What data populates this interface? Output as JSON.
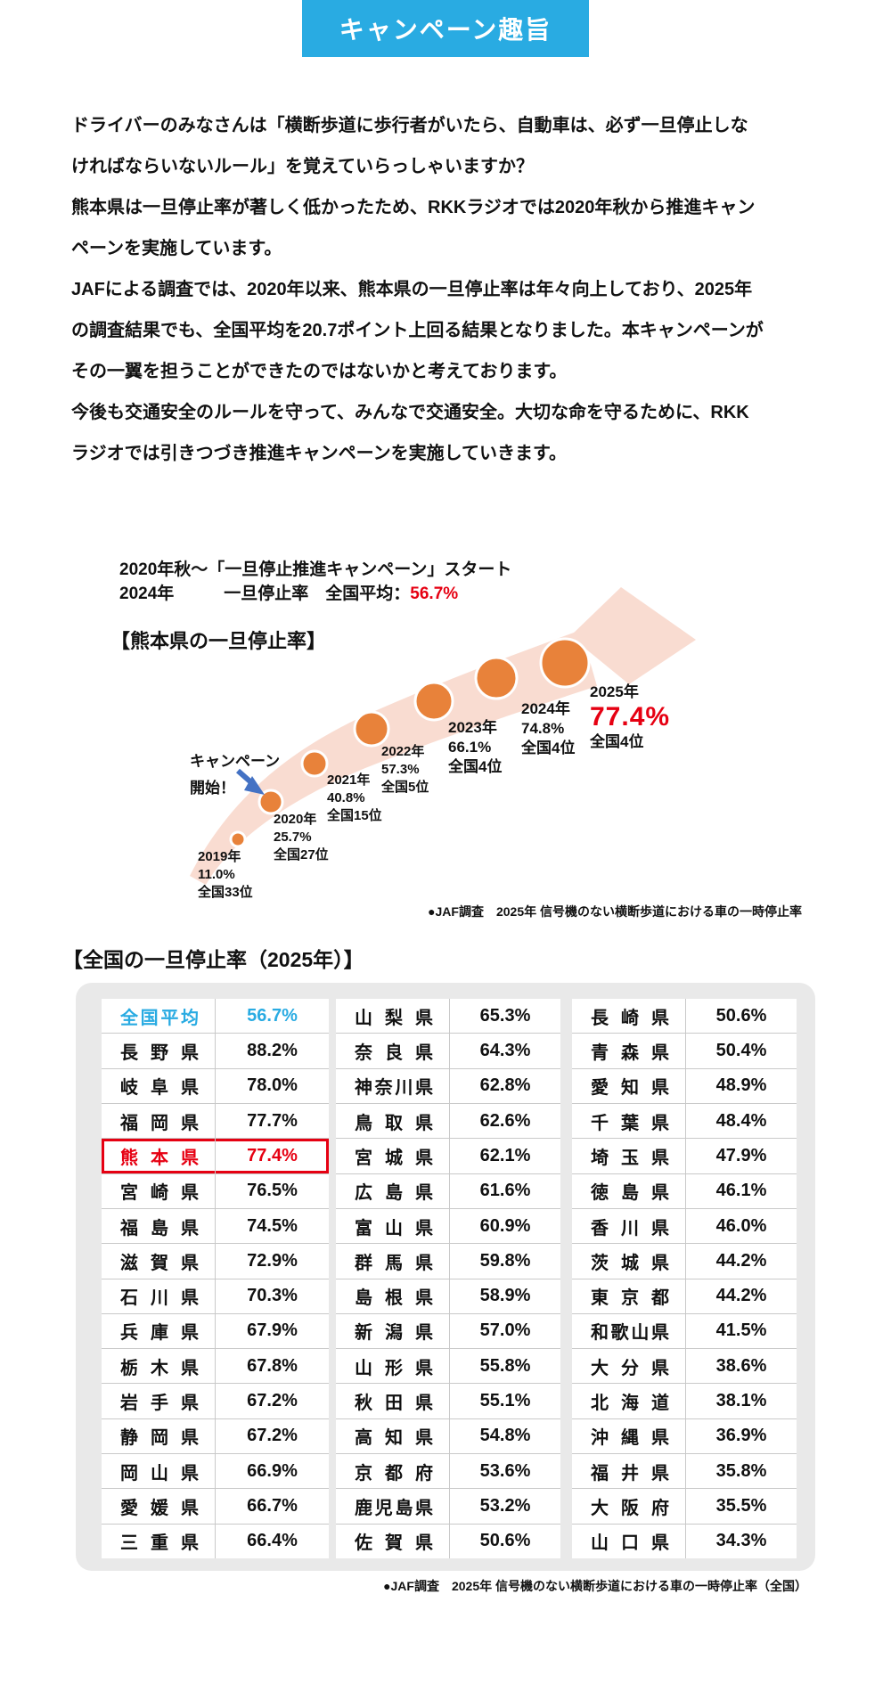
{
  "badge": "キャンペーン趣旨",
  "intro": {
    "paragraphs": [
      "ドライバーのみなさんは「横断歩道に歩行者がいたら、自動車は、必ず一旦停止しなければならいないルール」を覚えていらっしゃいますか？",
      "熊本県は一旦停止率が著しく低かったため、RKKラジオでは2020年秋から推進キャンペーンを実施しています。",
      "JAFによる調査では、2020年以来、熊本県の一旦停止率は年々向上しており、2025年の調査結果でも、全国平均を20.7ポイント上回る結果となりました。本キャンペーンがその一翼を担うことができたのではないかと考えております。",
      "今後も交通安全のルールを守って、みんなで交通安全。大切な命を守るために、RKKラジオでは引きつづき推進キャンペーンを実施していきます。"
    ]
  },
  "chart": {
    "note_line1": "2020年秋～「一旦停止推進キャンペーン」スタート",
    "note_line2_year": "2024年",
    "note_line2_label": "一旦停止率　全国平均：",
    "note_line2_value": "56.7%",
    "heading": "【熊本県の一旦停止率】",
    "campaign_start_line1": "キャンペーン",
    "campaign_start_line2": "開始！",
    "milestones": [
      {
        "year": "2019年",
        "rate": "11.0%",
        "rank": "全国33位"
      },
      {
        "year": "2020年",
        "rate": "25.7%",
        "rank": "全国27位"
      },
      {
        "year": "2021年",
        "rate": "40.8%",
        "rank": "全国15位"
      },
      {
        "year": "2022年",
        "rate": "57.3%",
        "rank": "全国5位"
      },
      {
        "year": "2023年",
        "rate": "66.1%",
        "rank": "全国4位"
      },
      {
        "year": "2024年",
        "rate": "74.8%",
        "rank": "全国4位"
      },
      {
        "year": "2025年",
        "rate": "77.4%",
        "rank": "全国4位"
      }
    ],
    "source": "●JAF調査　2025年 信号機のない横断歩道における車の一時停止率"
  },
  "chart_data": {
    "type": "bubble",
    "title": "【熊本県の一旦停止率】",
    "x": [
      "2019",
      "2020",
      "2021",
      "2022",
      "2023",
      "2024",
      "2025"
    ],
    "values": [
      11.0,
      25.7,
      40.8,
      57.3,
      66.1,
      74.8,
      77.4
    ],
    "ranks": [
      "全国33位",
      "全国27位",
      "全国15位",
      "全国5位",
      "全国4位",
      "全国4位",
      "全国4位"
    ],
    "unit": "%",
    "annotations": [
      "2020年秋～「一旦停止推進キャンペーン」スタート",
      "2024年 一旦停止率 全国平均：56.7%",
      "キャンペーン開始！"
    ],
    "source": "●JAF調査　2025年 信号機のない横断歩道における車の一時停止率"
  },
  "table": {
    "title": "【全国の一旦停止率（2025年）】",
    "columns": [
      [
        {
          "name": "全国平均",
          "value": "56.7%",
          "flag": "average"
        },
        {
          "name": "長野県",
          "value": "88.2%"
        },
        {
          "name": "岐阜県",
          "value": "78.0%"
        },
        {
          "name": "福岡県",
          "value": "77.7%"
        },
        {
          "name": "熊本県",
          "value": "77.4%",
          "flag": "highlight"
        },
        {
          "name": "宮崎県",
          "value": "76.5%"
        },
        {
          "name": "福島県",
          "value": "74.5%"
        },
        {
          "name": "滋賀県",
          "value": "72.9%"
        },
        {
          "name": "石川県",
          "value": "70.3%"
        },
        {
          "name": "兵庫県",
          "value": "67.9%"
        },
        {
          "name": "栃木県",
          "value": "67.8%"
        },
        {
          "name": "岩手県",
          "value": "67.2%"
        },
        {
          "name": "静岡県",
          "value": "67.2%"
        },
        {
          "name": "岡山県",
          "value": "66.9%"
        },
        {
          "name": "愛媛県",
          "value": "66.7%"
        },
        {
          "name": "三重県",
          "value": "66.4%"
        }
      ],
      [
        {
          "name": "山梨県",
          "value": "65.3%"
        },
        {
          "name": "奈良県",
          "value": "64.3%"
        },
        {
          "name": "神奈川県",
          "value": "62.8%"
        },
        {
          "name": "鳥取県",
          "value": "62.6%"
        },
        {
          "name": "宮城県",
          "value": "62.1%"
        },
        {
          "name": "広島県",
          "value": "61.6%"
        },
        {
          "name": "富山県",
          "value": "60.9%"
        },
        {
          "name": "群馬県",
          "value": "59.8%"
        },
        {
          "name": "島根県",
          "value": "58.9%"
        },
        {
          "name": "新潟県",
          "value": "57.0%"
        },
        {
          "name": "山形県",
          "value": "55.8%"
        },
        {
          "name": "秋田県",
          "value": "55.1%"
        },
        {
          "name": "高知県",
          "value": "54.8%"
        },
        {
          "name": "京都府",
          "value": "53.6%"
        },
        {
          "name": "鹿児島県",
          "value": "53.2%"
        },
        {
          "name": "佐賀県",
          "value": "50.6%"
        }
      ],
      [
        {
          "name": "長崎県",
          "value": "50.6%"
        },
        {
          "name": "青森県",
          "value": "50.4%"
        },
        {
          "name": "愛知県",
          "value": "48.9%"
        },
        {
          "name": "千葉県",
          "value": "48.4%"
        },
        {
          "name": "埼玉県",
          "value": "47.9%"
        },
        {
          "name": "徳島県",
          "value": "46.1%"
        },
        {
          "name": "香川県",
          "value": "46.0%"
        },
        {
          "name": "茨城県",
          "value": "44.2%"
        },
        {
          "name": "東京都",
          "value": "44.2%"
        },
        {
          "name": "和歌山県",
          "value": "41.5%"
        },
        {
          "name": "大分県",
          "value": "38.6%"
        },
        {
          "name": "北海道",
          "value": "38.1%"
        },
        {
          "name": "沖縄県",
          "value": "36.9%"
        },
        {
          "name": "福井県",
          "value": "35.8%"
        },
        {
          "name": "大阪府",
          "value": "35.5%"
        },
        {
          "name": "山口県",
          "value": "34.3%"
        }
      ]
    ],
    "source": "●JAF調査　2025年 信号機のない横断歩道における車の一時停止率（全国）"
  },
  "colors": {
    "badge_blue": "#29abe2",
    "accent_red": "#e60012",
    "bubble_orange": "#e8823a",
    "arrow_pink": "#f9dcd1",
    "pointer_blue": "#4472c4"
  }
}
